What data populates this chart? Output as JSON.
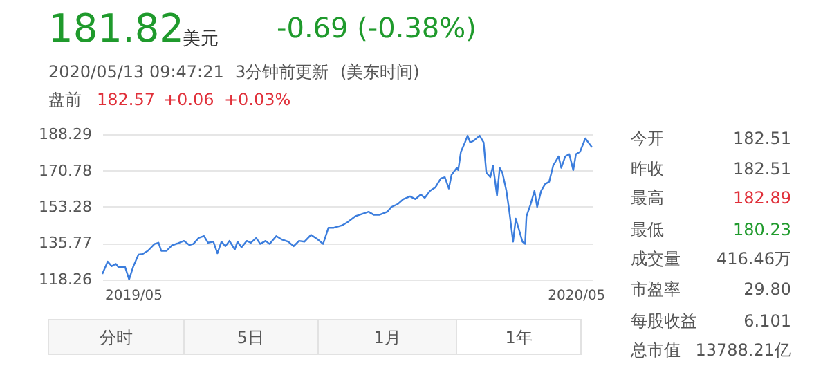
{
  "chart_data": {
    "type": "line",
    "x": [
      "2019-05-13",
      "2019-05-17",
      "2019-05-20",
      "2019-05-23",
      "2019-05-25",
      "2019-05-30",
      "2019-06-02",
      "2019-06-05",
      "2019-06-09",
      "2019-06-12",
      "2019-06-16",
      "2019-06-21",
      "2019-06-24",
      "2019-06-26",
      "2019-06-30",
      "2019-07-04",
      "2019-07-08",
      "2019-07-13",
      "2019-07-17",
      "2019-07-20",
      "2019-07-24",
      "2019-07-28",
      "2019-07-31",
      "2019-08-04",
      "2019-08-07",
      "2019-08-10",
      "2019-08-13",
      "2019-08-16",
      "2019-08-20",
      "2019-08-22",
      "2019-08-25",
      "2019-08-29",
      "2019-09-01",
      "2019-09-05",
      "2019-09-08",
      "2019-09-12",
      "2019-09-15",
      "2019-09-20",
      "2019-09-24",
      "2019-09-29",
      "2019-10-03",
      "2019-10-07",
      "2019-10-11",
      "2019-10-16",
      "2019-10-21",
      "2019-10-25",
      "2019-10-29",
      "2019-11-02",
      "2019-11-08",
      "2019-11-12",
      "2019-11-18",
      "2019-11-23",
      "2019-11-28",
      "2019-12-02",
      "2019-12-06",
      "2019-12-12",
      "2019-12-15",
      "2019-12-20",
      "2019-12-24",
      "2019-12-29",
      "2020-01-02",
      "2020-01-06",
      "2020-01-09",
      "2020-01-13",
      "2020-01-17",
      "2020-01-21",
      "2020-01-24",
      "2020-01-27",
      "2020-01-29",
      "2020-02-02",
      "2020-02-03",
      "2020-02-05",
      "2020-02-08",
      "2020-02-10",
      "2020-02-12",
      "2020-02-15",
      "2020-02-19",
      "2020-02-22",
      "2020-02-24",
      "2020-02-27",
      "2020-02-29",
      "2020-03-03",
      "2020-03-05",
      "2020-03-07",
      "2020-03-10",
      "2020-03-12",
      "2020-03-15",
      "2020-03-17",
      "2020-03-19",
      "2020-03-22",
      "2020-03-24",
      "2020-03-25",
      "2020-03-28",
      "2020-03-31",
      "2020-04-02",
      "2020-04-05",
      "2020-04-08",
      "2020-04-11",
      "2020-04-14",
      "2020-04-18",
      "2020-04-20",
      "2020-04-23",
      "2020-04-26",
      "2020-04-29",
      "2020-05-01",
      "2020-05-04",
      "2020-05-08",
      "2020-05-13"
    ],
    "series": [
      {
        "color": "#3b7ddd",
        "values": [
          120.9,
          126.9,
          124.7,
          125.8,
          124.3,
          124.3,
          118.3,
          124.3,
          130.3,
          130.5,
          132.1,
          135.4,
          136.0,
          132.1,
          132.1,
          134.7,
          135.6,
          136.9,
          134.9,
          135.4,
          138.3,
          139.2,
          136.0,
          136.5,
          130.9,
          136.5,
          134.3,
          136.9,
          132.7,
          136.5,
          133.8,
          136.9,
          136.0,
          138.3,
          135.4,
          136.9,
          135.4,
          139.2,
          137.6,
          136.5,
          134.3,
          136.9,
          136.5,
          139.8,
          137.6,
          135.4,
          143.2,
          143.2,
          144.3,
          145.8,
          148.7,
          149.8,
          150.9,
          149.4,
          149.4,
          150.9,
          153.2,
          154.7,
          157.0,
          158.3,
          157.0,
          159.2,
          157.6,
          161.0,
          162.7,
          167.0,
          167.6,
          162.1,
          168.7,
          172.1,
          171.0,
          179.8,
          184.3,
          187.6,
          184.3,
          185.4,
          187.6,
          184.3,
          169.8,
          167.6,
          173.2,
          158.7,
          172.1,
          169.8,
          161.0,
          152.1,
          136.5,
          147.6,
          143.2,
          136.5,
          135.4,
          148.7,
          154.3,
          161.0,
          153.2,
          161.0,
          164.3,
          165.4,
          173.2,
          177.6,
          172.1,
          177.6,
          178.7,
          171.0,
          178.7,
          179.8,
          186.3,
          182.0
        ]
      }
    ],
    "xlim": [
      "2019-05-13",
      "2020-05-13"
    ],
    "xticks": [
      {
        "value": "2019-06-05",
        "label": "2019/05"
      },
      {
        "value": "2020-05-01",
        "label": "2020/05"
      }
    ],
    "ylim": [
      118.26,
      188.29
    ],
    "yticks": [
      118.26,
      135.77,
      153.28,
      170.78,
      188.29
    ],
    "grid": "y",
    "legend": false,
    "annotations": [
      "181.82",
      "美元",
      "-0.69 (-0.38%)",
      "2020/05/13 09:47:21",
      "3分钟前更新",
      "(美东时间)",
      "盘前",
      "182.57",
      "+0.06",
      "+0.03%",
      "今开",
      "182.51",
      "昨收",
      "182.51",
      "最高",
      "182.89",
      "最低",
      "180.23",
      "成交量",
      "416.46万",
      "市盈率",
      "29.80",
      "每股收益",
      "6.101",
      "总市值",
      "13788.21亿",
      "分时",
      "5日",
      "1月",
      "1年"
    ]
  }
}
